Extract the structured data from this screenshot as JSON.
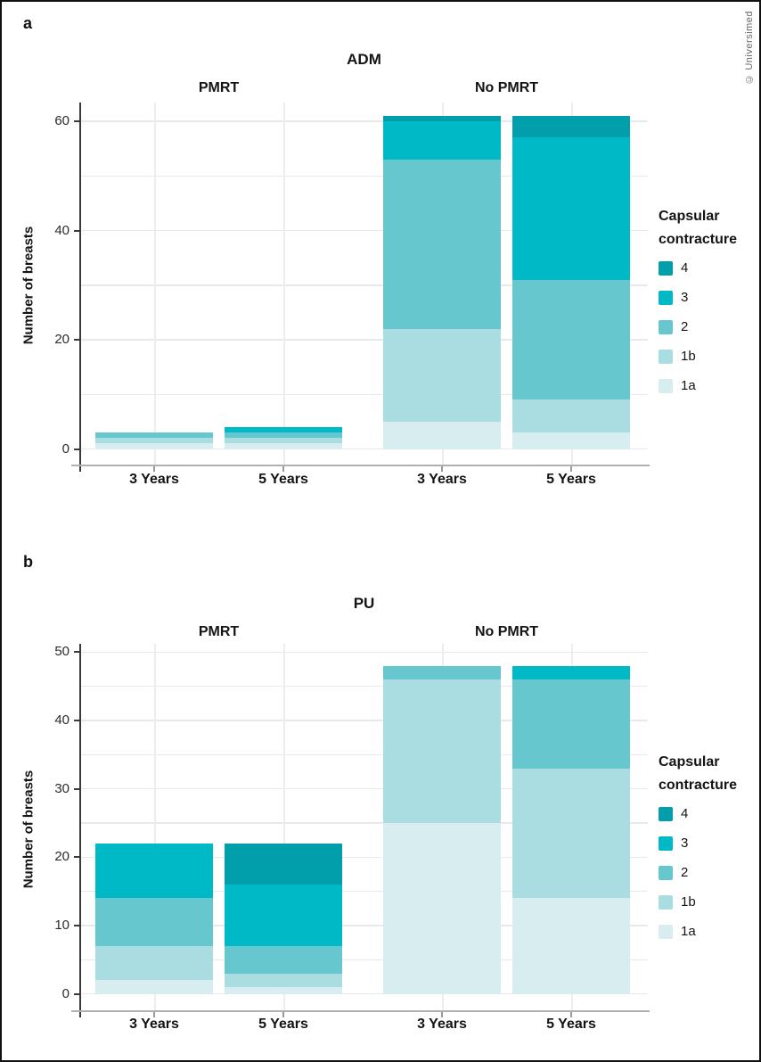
{
  "figure": {
    "panel_a_label": "a",
    "panel_b_label": "b",
    "copyright": "© Universimed"
  },
  "legend": {
    "title_lines": [
      "Capsular",
      "contracture"
    ],
    "items": [
      {
        "label": "4",
        "color": "#009fab"
      },
      {
        "label": "3",
        "color": "#00b9c7"
      },
      {
        "label": "2",
        "color": "#66c8ce"
      },
      {
        "label": "1b",
        "color": "#a9dde1"
      },
      {
        "label": "1a",
        "color": "#d8edf0"
      }
    ]
  },
  "chart_data": [
    {
      "type": "bar",
      "stacked": true,
      "panel": "a",
      "title": "ADM",
      "facets": [
        "PMRT",
        "No PMRT"
      ],
      "categories": [
        "3 Years",
        "5 Years",
        "3 Years",
        "5 Years"
      ],
      "ylabel": "Number of breasts",
      "ylim": [
        0,
        62
      ],
      "yticks": [
        0,
        20,
        40,
        60
      ],
      "grid_step": 10,
      "grid_on": true,
      "legend_title": "Capsular contracture",
      "legend_position": "right",
      "series": [
        {
          "name": "4",
          "color": "#009fab",
          "values": [
            0,
            0,
            1,
            4
          ]
        },
        {
          "name": "3",
          "color": "#00b9c7",
          "values": [
            0,
            1,
            7,
            26
          ]
        },
        {
          "name": "2",
          "color": "#66c8ce",
          "values": [
            1,
            1,
            31,
            22
          ]
        },
        {
          "name": "1b",
          "color": "#a9dde1",
          "values": [
            1,
            1,
            17,
            6
          ]
        },
        {
          "name": "1a",
          "color": "#d8edf0",
          "values": [
            1,
            1,
            5,
            3
          ]
        }
      ]
    },
    {
      "type": "bar",
      "stacked": true,
      "panel": "b",
      "title": "PU",
      "facets": [
        "PMRT",
        "No PMRT"
      ],
      "categories": [
        "3 Years",
        "5 Years",
        "3 Years",
        "5 Years"
      ],
      "ylabel": "Number of breasts",
      "ylim": [
        0,
        52
      ],
      "yticks": [
        0,
        10,
        20,
        30,
        40,
        50
      ],
      "grid_step": 5,
      "grid_on": true,
      "legend_title": "Capsular contracture",
      "legend_position": "right",
      "series": [
        {
          "name": "4",
          "color": "#009fab",
          "values": [
            0,
            6,
            0,
            0
          ]
        },
        {
          "name": "3",
          "color": "#00b9c7",
          "values": [
            8,
            9,
            0,
            2
          ]
        },
        {
          "name": "2",
          "color": "#66c8ce",
          "values": [
            7,
            4,
            2,
            13
          ]
        },
        {
          "name": "1b",
          "color": "#a9dde1",
          "values": [
            5,
            2,
            21,
            19
          ]
        },
        {
          "name": "1a",
          "color": "#d8edf0",
          "values": [
            2,
            1,
            25,
            14
          ]
        }
      ]
    }
  ]
}
